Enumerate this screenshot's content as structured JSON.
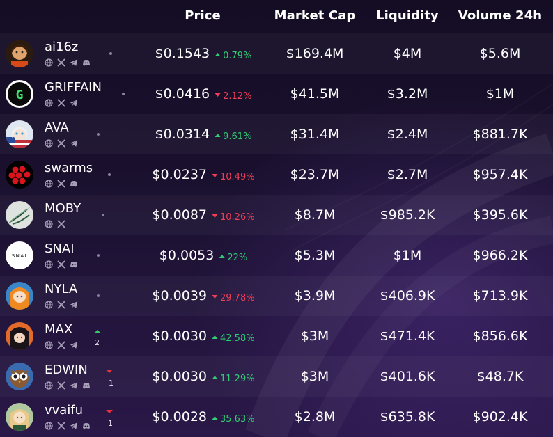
{
  "header": {
    "price": "Price",
    "market_cap": "Market Cap",
    "liquidity": "Liquidity",
    "volume": "Volume 24h"
  },
  "colors": {
    "up": "#2fce72",
    "down": "#ef3e55",
    "background": "#1b1130"
  },
  "rows": [
    {
      "name": "ai16z",
      "socials": [
        "globe-icon",
        "x-icon",
        "telegram-icon",
        "discord-icon"
      ],
      "price": "$0.1543",
      "change": "0.79%",
      "dir": "up",
      "market_cap": "$169.4M",
      "liquidity": "$4M",
      "volume": "$5.6M",
      "rank_change": null,
      "rank_dir": null
    },
    {
      "name": "GRIFFAIN",
      "socials": [
        "globe-icon",
        "x-icon",
        "telegram-icon"
      ],
      "price": "$0.0416",
      "change": "2.12%",
      "dir": "down",
      "market_cap": "$41.5M",
      "liquidity": "$3.2M",
      "volume": "$1M",
      "rank_change": null,
      "rank_dir": null
    },
    {
      "name": "AVA",
      "socials": [
        "globe-icon",
        "x-icon",
        "telegram-icon"
      ],
      "price": "$0.0314",
      "change": "9.61%",
      "dir": "up",
      "market_cap": "$31.4M",
      "liquidity": "$2.4M",
      "volume": "$881.7K",
      "rank_change": null,
      "rank_dir": null
    },
    {
      "name": "swarms",
      "socials": [
        "globe-icon",
        "x-icon",
        "discord-icon"
      ],
      "price": "$0.0237",
      "change": "10.49%",
      "dir": "down",
      "market_cap": "$23.7M",
      "liquidity": "$2.7M",
      "volume": "$957.4K",
      "rank_change": null,
      "rank_dir": null
    },
    {
      "name": "MOBY",
      "socials": [
        "globe-icon",
        "x-icon"
      ],
      "price": "$0.0087",
      "change": "10.26%",
      "dir": "down",
      "market_cap": "$8.7M",
      "liquidity": "$985.2K",
      "volume": "$395.6K",
      "rank_change": null,
      "rank_dir": null
    },
    {
      "name": "SNAI",
      "socials": [
        "globe-icon",
        "x-icon",
        "discord-icon"
      ],
      "price": "$0.0053",
      "change": "22%",
      "dir": "up",
      "market_cap": "$5.3M",
      "liquidity": "$1M",
      "volume": "$966.2K",
      "rank_change": null,
      "rank_dir": null
    },
    {
      "name": "NYLA",
      "socials": [
        "globe-icon",
        "x-icon",
        "telegram-icon"
      ],
      "price": "$0.0039",
      "change": "29.78%",
      "dir": "down",
      "market_cap": "$3.9M",
      "liquidity": "$406.9K",
      "volume": "$713.9K",
      "rank_change": null,
      "rank_dir": null
    },
    {
      "name": "MAX",
      "socials": [
        "globe-icon",
        "x-icon",
        "telegram-icon"
      ],
      "price": "$0.0030",
      "change": "42.58%",
      "dir": "up",
      "market_cap": "$3M",
      "liquidity": "$471.4K",
      "volume": "$856.6K",
      "rank_change": "2",
      "rank_dir": "up"
    },
    {
      "name": "EDWIN",
      "socials": [
        "globe-icon",
        "x-icon",
        "telegram-icon",
        "discord-icon"
      ],
      "price": "$0.0030",
      "change": "11.29%",
      "dir": "up",
      "market_cap": "$3M",
      "liquidity": "$401.6K",
      "volume": "$48.7K",
      "rank_change": "1",
      "rank_dir": "down"
    },
    {
      "name": "vvaifu",
      "socials": [
        "globe-icon",
        "x-icon",
        "telegram-icon",
        "discord-icon"
      ],
      "price": "$0.0028",
      "change": "35.63%",
      "dir": "up",
      "market_cap": "$2.8M",
      "liquidity": "$635.8K",
      "volume": "$902.4K",
      "rank_change": "1",
      "rank_dir": "down"
    }
  ]
}
